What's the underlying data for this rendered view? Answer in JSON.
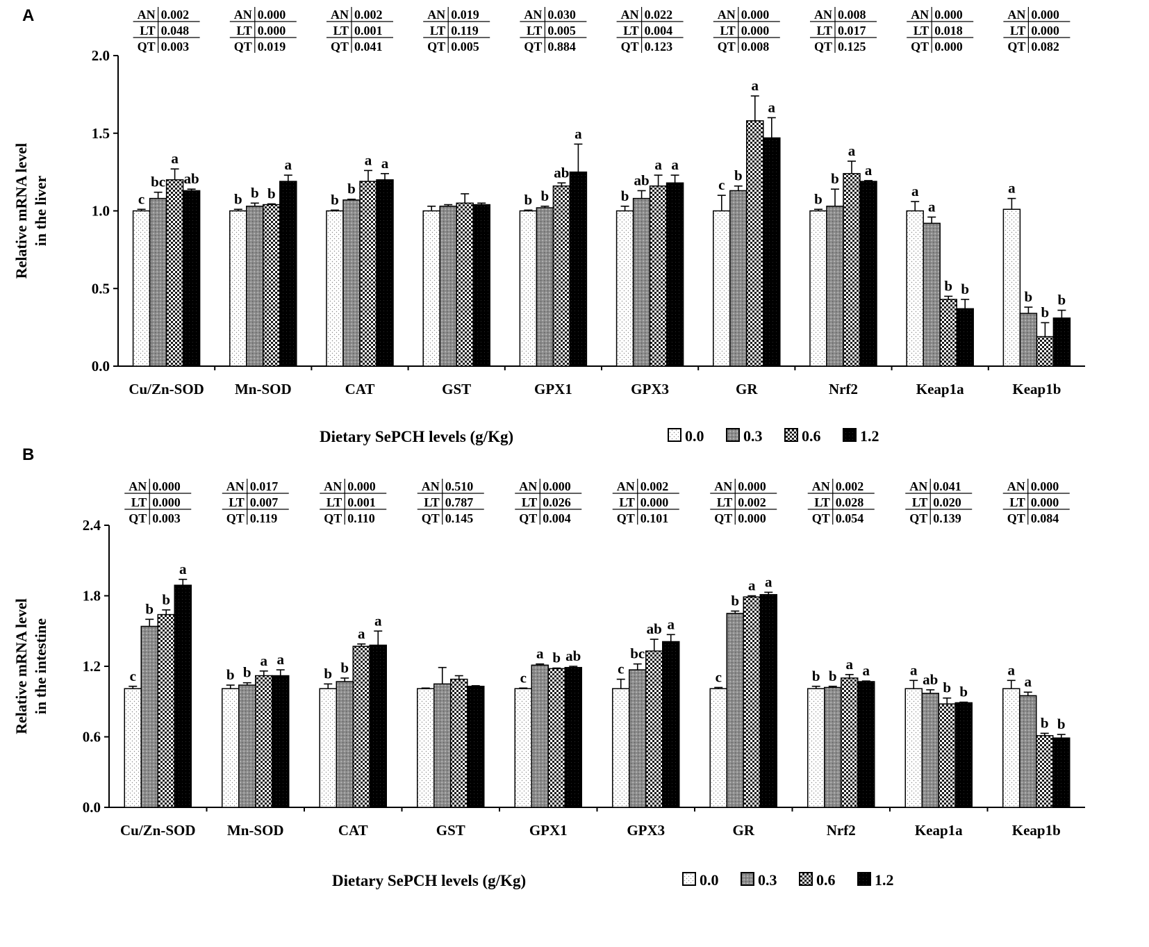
{
  "chart_data": [
    {
      "panel": "A",
      "type": "bar",
      "ylabel": [
        "Relative mRNA level",
        "in the liver"
      ],
      "xlabel": "Dietary SePCH levels (g/Kg)",
      "ylim": [
        0,
        2.0
      ],
      "yticks": [
        "0.0",
        "0.5",
        "1.0",
        "1.5",
        "2.0"
      ],
      "ytick_values": [
        0,
        0.5,
        1.0,
        1.5,
        2.0
      ],
      "legend": [
        "0.0",
        "0.3",
        "0.6",
        "1.2"
      ],
      "categories": [
        "Cu/Zn-SOD",
        "Mn-SOD",
        "CAT",
        "GST",
        "GPX1",
        "GPX3",
        "GR",
        "Nrf2",
        "Keap1a",
        "Keap1b"
      ],
      "series": [
        {
          "name": "0.0",
          "values": [
            1.0,
            1.0,
            1.0,
            1.0,
            1.0,
            1.0,
            1.0,
            1.0,
            1.0,
            1.01
          ],
          "errors": [
            0.01,
            0.01,
            0.005,
            0.03,
            0.005,
            0.03,
            0.1,
            0.01,
            0.06,
            0.07
          ],
          "letters": [
            "c",
            "b",
            "b",
            "",
            "b",
            "b",
            "c",
            "b",
            "a",
            "a"
          ]
        },
        {
          "name": "0.3",
          "values": [
            1.08,
            1.03,
            1.07,
            1.03,
            1.02,
            1.08,
            1.13,
            1.03,
            0.92,
            0.34
          ],
          "errors": [
            0.04,
            0.02,
            0.005,
            0.01,
            0.01,
            0.05,
            0.03,
            0.11,
            0.04,
            0.04
          ],
          "letters": [
            "bc",
            "b",
            "b",
            "",
            "b",
            "ab",
            "b",
            "b",
            "a",
            "b"
          ]
        },
        {
          "name": "0.6",
          "values": [
            1.2,
            1.04,
            1.19,
            1.05,
            1.16,
            1.16,
            1.58,
            1.24,
            0.43,
            0.19
          ],
          "errors": [
            0.07,
            0.005,
            0.07,
            0.06,
            0.02,
            0.07,
            0.16,
            0.08,
            0.02,
            0.09
          ],
          "letters": [
            "a",
            "b",
            "a",
            "",
            "ab",
            "a",
            "a",
            "a",
            "b",
            "b"
          ]
        },
        {
          "name": "1.2",
          "values": [
            1.13,
            1.19,
            1.2,
            1.04,
            1.25,
            1.18,
            1.47,
            1.19,
            0.37,
            0.31
          ],
          "errors": [
            0.01,
            0.04,
            0.04,
            0.01,
            0.18,
            0.05,
            0.13,
            0.005,
            0.06,
            0.05
          ],
          "letters": [
            "ab",
            "a",
            "a",
            "",
            "a",
            "a",
            "a",
            "a",
            "b",
            "b"
          ]
        }
      ],
      "stats": [
        {
          "AN": "0.002",
          "LT": "0.048",
          "QT": "0.003"
        },
        {
          "AN": "0.000",
          "LT": "0.000",
          "QT": "0.019"
        },
        {
          "AN": "0.002",
          "LT": "0.001",
          "QT": "0.041"
        },
        {
          "AN": "0.019",
          "LT": "0.119",
          "QT": "0.005"
        },
        {
          "AN": "0.030",
          "LT": "0.005",
          "QT": "0.884"
        },
        {
          "AN": "0.022",
          "LT": "0.004",
          "QT": "0.123"
        },
        {
          "AN": "0.000",
          "LT": "0.000",
          "QT": "0.008"
        },
        {
          "AN": "0.008",
          "LT": "0.017",
          "QT": "0.125"
        },
        {
          "AN": "0.000",
          "LT": "0.018",
          "QT": "0.000"
        },
        {
          "AN": "0.000",
          "LT": "0.000",
          "QT": "0.082"
        }
      ]
    },
    {
      "panel": "B",
      "type": "bar",
      "ylabel": [
        "Relative mRNA level",
        "in the intestine"
      ],
      "xlabel": "Dietary SePCH levels (g/Kg)",
      "ylim": [
        0,
        2.4
      ],
      "yticks": [
        "0.0",
        "0.6",
        "1.2",
        "1.8",
        "2.4"
      ],
      "ytick_values": [
        0,
        0.6,
        1.2,
        1.8,
        2.4
      ],
      "legend": [
        "0.0",
        "0.3",
        "0.6",
        "1.2"
      ],
      "categories": [
        "Cu/Zn-SOD",
        "Mn-SOD",
        "CAT",
        "GST",
        "GPX1",
        "GPX3",
        "GR",
        "Nrf2",
        "Keap1a",
        "Keap1b"
      ],
      "series": [
        {
          "name": "0.0",
          "values": [
            1.01,
            1.01,
            1.01,
            1.01,
            1.01,
            1.01,
            1.01,
            1.01,
            1.01,
            1.01
          ],
          "errors": [
            0.02,
            0.03,
            0.04,
            0.005,
            0.005,
            0.08,
            0.01,
            0.02,
            0.07,
            0.07
          ],
          "letters": [
            "c",
            "b",
            "b",
            "",
            "c",
            "c",
            "c",
            "b",
            "a",
            "a"
          ]
        },
        {
          "name": "0.3",
          "values": [
            1.54,
            1.04,
            1.07,
            1.05,
            1.21,
            1.17,
            1.65,
            1.02,
            0.97,
            0.95
          ],
          "errors": [
            0.06,
            0.02,
            0.03,
            0.14,
            0.01,
            0.05,
            0.02,
            0.01,
            0.03,
            0.03
          ],
          "letters": [
            "b",
            "b",
            "b",
            "",
            "a",
            "bc",
            "b",
            "b",
            "ab",
            "a"
          ]
        },
        {
          "name": "0.6",
          "values": [
            1.64,
            1.12,
            1.37,
            1.09,
            1.18,
            1.33,
            1.79,
            1.1,
            0.88,
            0.61
          ],
          "errors": [
            0.04,
            0.04,
            0.02,
            0.03,
            0.005,
            0.1,
            0.01,
            0.03,
            0.05,
            0.02
          ],
          "letters": [
            "b",
            "a",
            "a",
            "",
            "b",
            "ab",
            "a",
            "a",
            "b",
            "b"
          ]
        },
        {
          "name": "1.2",
          "values": [
            1.89,
            1.12,
            1.38,
            1.03,
            1.19,
            1.41,
            1.81,
            1.07,
            0.89,
            0.59
          ],
          "errors": [
            0.05,
            0.05,
            0.12,
            0.005,
            0.01,
            0.06,
            0.02,
            0.005,
            0.005,
            0.03
          ],
          "letters": [
            "a",
            "a",
            "a",
            "",
            "ab",
            "a",
            "a",
            "a",
            "b",
            "b"
          ]
        }
      ],
      "stats": [
        {
          "AN": "0.000",
          "LT": "0.000",
          "QT": "0.003"
        },
        {
          "AN": "0.017",
          "LT": "0.007",
          "QT": "0.119"
        },
        {
          "AN": "0.000",
          "LT": "0.001",
          "QT": "0.110"
        },
        {
          "AN": "0.510",
          "LT": "0.787",
          "QT": "0.145"
        },
        {
          "AN": "0.000",
          "LT": "0.026",
          "QT": "0.004"
        },
        {
          "AN": "0.002",
          "LT": "0.000",
          "QT": "0.101"
        },
        {
          "AN": "0.000",
          "LT": "0.002",
          "QT": "0.000"
        },
        {
          "AN": "0.002",
          "LT": "0.028",
          "QT": "0.054"
        },
        {
          "AN": "0.041",
          "LT": "0.020",
          "QT": "0.139"
        },
        {
          "AN": "0.000",
          "LT": "0.000",
          "QT": "0.084"
        }
      ]
    }
  ]
}
